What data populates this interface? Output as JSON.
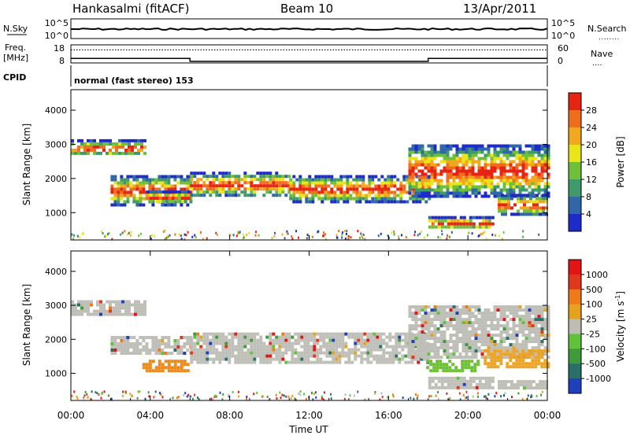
{
  "header": {
    "station": "Hankasalmi (fitACF)",
    "beam": "Beam 10",
    "date": "13/Apr/2011"
  },
  "sky_panel": {
    "left_label": "N.Sky",
    "left_ticks": [
      "10^5",
      "10^0"
    ],
    "right_ticks": [
      "10^5",
      "10^0"
    ],
    "right_label": "N.Search",
    "right_legend": "........"
  },
  "freq_panel": {
    "left_label_1": "Freq.",
    "left_label_2": "[MHz]",
    "left_ticks": [
      "18",
      "8"
    ],
    "right_ticks": [
      "60",
      "0"
    ],
    "right_label": "Nave",
    "right_legend": "....",
    "freq_level_frac": 0.72,
    "nave_level_frac": 0.25
  },
  "cpid": {
    "label": "CPID",
    "mode": "normal (fast stereo) 153"
  },
  "chart_data": [
    {
      "type": "heatmap",
      "name": "power",
      "ylabel": "Slant Range [km]",
      "ylim": [
        200,
        4600
      ],
      "yticks": [
        "4000",
        "3000",
        "2000",
        "1000"
      ],
      "ytick_values": [
        4000,
        3000,
        2000,
        1000
      ],
      "colorbar_label": "Power [dB]",
      "colorbar_ticks": [
        "28",
        "24",
        "20",
        "16",
        "12",
        "8",
        "4"
      ],
      "colorbar_colors": [
        "#1e2bc8",
        "#2f67a8",
        "#3f9a6a",
        "#6fbf3a",
        "#e8e619",
        "#f2a81e",
        "#ef6e1e",
        "#e62414"
      ],
      "bands": [
        {
          "x0": 0.0,
          "x1": 3.7,
          "y0": 2700,
          "y1": 3150
        },
        {
          "x0": 2.0,
          "x1": 6.0,
          "y0": 1250,
          "y1": 2100
        },
        {
          "x0": 3.8,
          "x1": 6.0,
          "y0": 1300,
          "y1": 1650
        },
        {
          "x0": 6.0,
          "x1": 11.0,
          "y0": 1500,
          "y1": 2200
        },
        {
          "x0": 11.0,
          "x1": 18.0,
          "y0": 1350,
          "y1": 2100
        },
        {
          "x0": 17.0,
          "x1": 24.0,
          "y0": 1500,
          "y1": 3000
        },
        {
          "x0": 18.0,
          "x1": 21.3,
          "y0": 550,
          "y1": 900
        },
        {
          "x0": 21.5,
          "x1": 24.0,
          "y0": 950,
          "y1": 1550
        }
      ]
    },
    {
      "type": "heatmap",
      "name": "velocity",
      "ylabel": "Slant Range [km]",
      "ylim": [
        200,
        4600
      ],
      "yticks": [
        "4000",
        "3000",
        "2000",
        "1000"
      ],
      "ytick_values": [
        4000,
        3000,
        2000,
        1000
      ],
      "colorbar_label": "Velocity [m s",
      "colorbar_label_sup": "-1",
      "colorbar_label_end": "]",
      "colorbar_ticks": [
        "1000",
        "500",
        "100",
        "25",
        "-25",
        "-100",
        "-500",
        "-1000"
      ],
      "colorbar_colors": [
        "#1f3fbf",
        "#2a6f6a",
        "#3f9a3a",
        "#5fc33a",
        "#bdbdb5",
        "#e6a21e",
        "#ef7a1a",
        "#e0381c",
        "#e31414"
      ],
      "bands": [
        {
          "x0": 0.0,
          "x1": 3.7,
          "y0": 2700,
          "y1": 3150
        },
        {
          "x0": 2.0,
          "x1": 6.0,
          "y0": 1550,
          "y1": 2100
        },
        {
          "x0": 6.0,
          "x1": 18.0,
          "y0": 1350,
          "y1": 2200
        },
        {
          "x0": 17.0,
          "x1": 24.0,
          "y0": 1500,
          "y1": 3000
        },
        {
          "x0": 18.0,
          "x1": 21.3,
          "y0": 550,
          "y1": 900
        },
        {
          "x0": 21.5,
          "x1": 24.0,
          "y0": 550,
          "y1": 800
        }
      ],
      "highlights": [
        {
          "x0": 3.6,
          "x1": 5.9,
          "y0": 1050,
          "y1": 1400,
          "color": "#ee8a1c"
        },
        {
          "x0": 20.8,
          "x1": 24.0,
          "y0": 1150,
          "y1": 1700,
          "color": "#f0a41e"
        },
        {
          "x0": 17.9,
          "x1": 20.5,
          "y0": 1050,
          "y1": 1400,
          "color": "#6fbf3a"
        }
      ]
    }
  ],
  "time_axis": {
    "ticks": [
      "00:00",
      "04:00",
      "08:00",
      "12:00",
      "16:00",
      "20:00",
      "00:00"
    ],
    "tick_hours": [
      0,
      4,
      8,
      12,
      16,
      20,
      24
    ],
    "label": "Time UT"
  }
}
